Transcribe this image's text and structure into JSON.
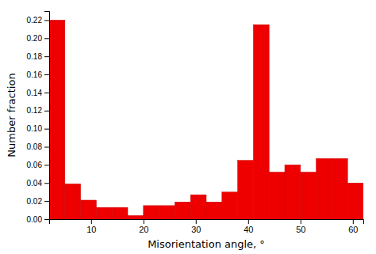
{
  "chart_data": {
    "type": "histogram",
    "bins": [
      2,
      5,
      8,
      11,
      14,
      17,
      20,
      23,
      26,
      29,
      32,
      35,
      38,
      41,
      44,
      47,
      50,
      53,
      56,
      59,
      62
    ],
    "values": [
      0.22,
      0.039,
      0.021,
      0.013,
      0.013,
      0.004,
      0.015,
      0.015,
      0.019,
      0.027,
      0.019,
      0.03,
      0.065,
      0.215,
      0.052,
      0.06,
      0.052,
      0.067,
      0.067,
      0.04
    ],
    "color": "#ee0000",
    "xlim": [
      2,
      62
    ],
    "ylim": [
      0.0,
      0.23
    ],
    "xticks": [
      10,
      20,
      30,
      40,
      50,
      60
    ],
    "yticks": [
      {
        "value": 0.0,
        "label": "0.00"
      },
      {
        "value": 0.02,
        "label": "0.02"
      },
      {
        "value": 0.04,
        "label": "0.04"
      },
      {
        "value": 0.06,
        "label": "0.06"
      },
      {
        "value": 0.08,
        "label": "0.08"
      },
      {
        "value": 0.1,
        "label": "0.10"
      },
      {
        "value": 0.12,
        "label": "0.12"
      },
      {
        "value": 0.14,
        "label": "0.14"
      },
      {
        "value": 0.16,
        "label": "0.16"
      },
      {
        "value": 0.18,
        "label": "0.18"
      },
      {
        "value": 0.2,
        "label": "0.20"
      },
      {
        "value": 0.22,
        "label": "0.22"
      }
    ],
    "xlabel": "Misorientation angle, °",
    "ylabel": "Number fraction"
  }
}
